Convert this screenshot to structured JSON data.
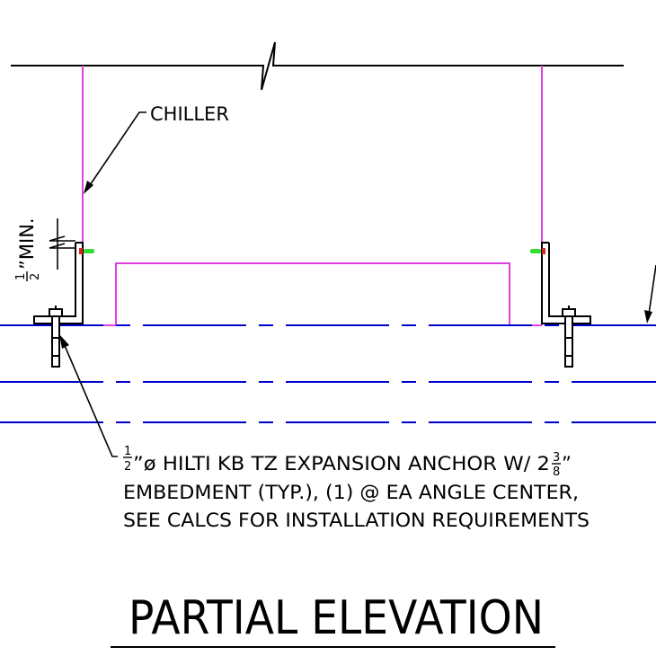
{
  "labels": {
    "chiller": "CHILLER",
    "min_value_num": "1",
    "min_value_den": "2",
    "min_value_suffix": "”MIN.",
    "anchor_line1_num": "1",
    "anchor_line1_den": "2",
    "anchor_line1_a": "”ø HILTI KB TZ EXPANSION ANCHOR W/ 2",
    "anchor_line1_frac_num": "3",
    "anchor_line1_frac_den": "8",
    "anchor_line1_b": "”",
    "anchor_line2": "EMBEDMENT (TYP.), (1) @ EA ANGLE CENTER,",
    "anchor_line3": "SEE CALCS FOR INSTALLATION REQUIREMENTS",
    "title": "PARTIAL ELEVATION"
  },
  "colors": {
    "linework": "#000000",
    "chiller": "#e040e0",
    "slab": "#0000cc",
    "bolt_green": "#33dd33",
    "bolt_red": "#dd2222"
  }
}
